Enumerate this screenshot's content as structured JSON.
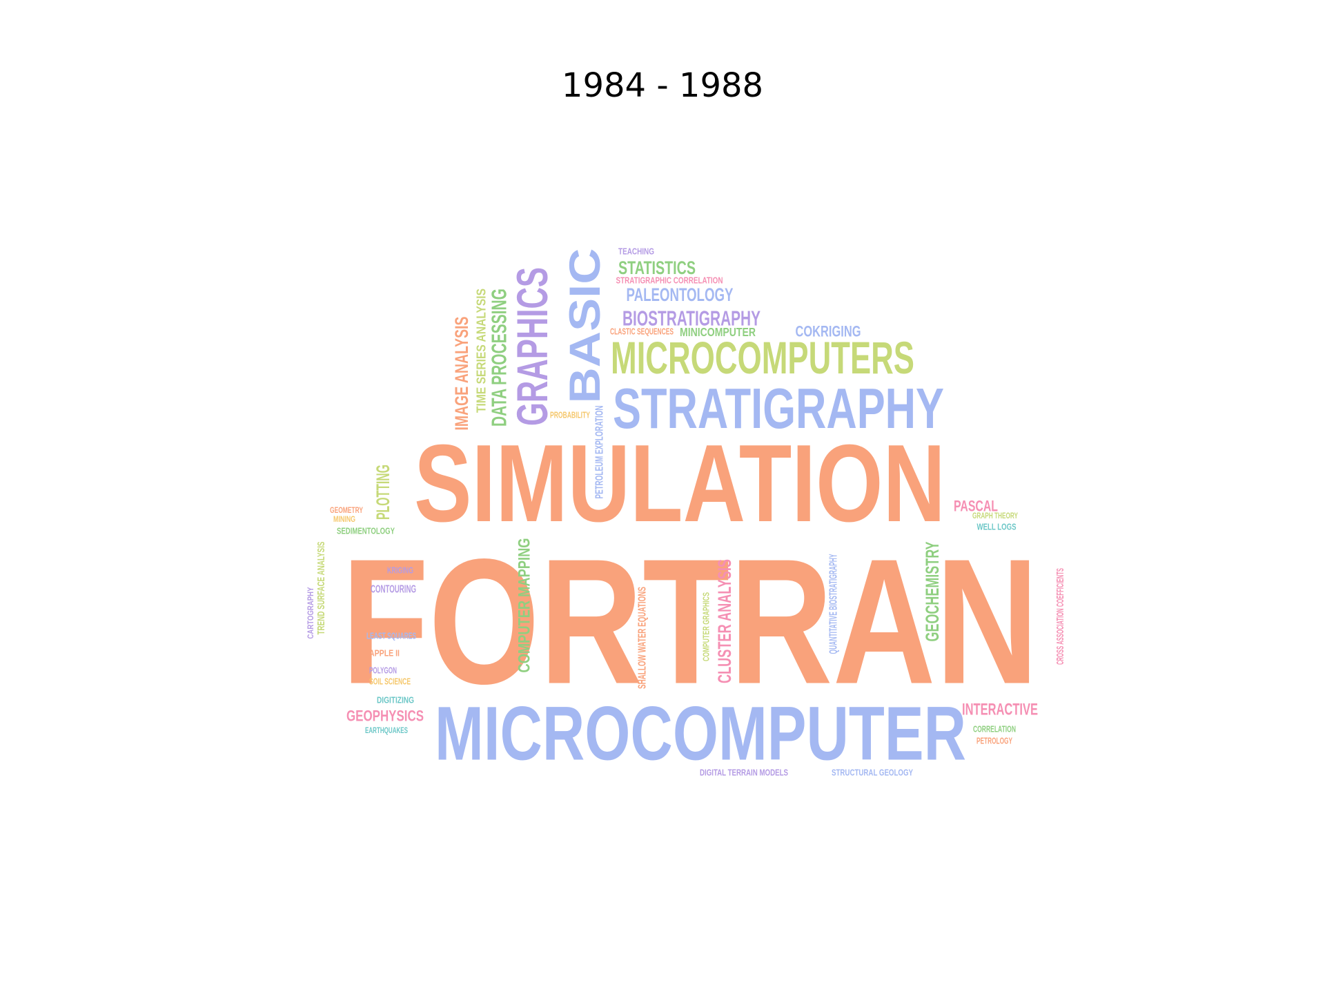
{
  "title": "1984 - 1988",
  "words": [
    {
      "text": "FORTRAN",
      "color": "#f9a27b"
    },
    {
      "text": "SIMULATION",
      "color": "#f9a27b"
    },
    {
      "text": "MICROCOMPUTER",
      "color": "#a4b8f2"
    },
    {
      "text": "STRATIGRAPHY",
      "color": "#a4b8f2"
    },
    {
      "text": "MICROCOMPUTERS",
      "color": "#c6d978"
    },
    {
      "text": "BASIC",
      "color": "#a4b8f2"
    },
    {
      "text": "GRAPHICS",
      "color": "#b49be4"
    },
    {
      "text": "DATA PROCESSING",
      "color": "#8fcf80"
    },
    {
      "text": "TIME SERIES ANALYSIS",
      "color": "#c6d978"
    },
    {
      "text": "IMAGE ANALYSIS",
      "color": "#f9a27b"
    },
    {
      "text": "TEACHING",
      "color": "#b49be4"
    },
    {
      "text": "STATISTICS",
      "color": "#8fcf80"
    },
    {
      "text": "STRATIGRAPHIC CORRELATION",
      "color": "#f58fb3"
    },
    {
      "text": "PALEONTOLOGY",
      "color": "#a4b8f2"
    },
    {
      "text": "BIOSTRATIGRAPHY",
      "color": "#b49be4"
    },
    {
      "text": "CLASTIC SEQUENCES",
      "color": "#f9a27b"
    },
    {
      "text": "MINICOMPUTER",
      "color": "#8fcf80"
    },
    {
      "text": "COKRIGING",
      "color": "#a4b8f2"
    },
    {
      "text": "PROBABILITY",
      "color": "#f5c76b"
    },
    {
      "text": "PETROLEUM EXPLORATION",
      "color": "#a4b8f2"
    },
    {
      "text": "PLOTTING",
      "color": "#c6d978"
    },
    {
      "text": "GEOMETRY",
      "color": "#f9a27b"
    },
    {
      "text": "MINING",
      "color": "#f5c76b"
    },
    {
      "text": "SEDIMENTOLOGY",
      "color": "#8fcf80"
    },
    {
      "text": "PASCAL",
      "color": "#f58fb3"
    },
    {
      "text": "GRAPH THEORY",
      "color": "#c6d978"
    },
    {
      "text": "WELL LOGS",
      "color": "#6cc7c7"
    },
    {
      "text": "CARTOGRAPHY",
      "color": "#b49be4"
    },
    {
      "text": "TREND SURFACE ANALYSIS",
      "color": "#c6d978"
    },
    {
      "text": "KRIGING",
      "color": "#b49be4"
    },
    {
      "text": "CONTOURING",
      "color": "#b49be4"
    },
    {
      "text": "LEAST SQUARES",
      "color": "#a4b8f2"
    },
    {
      "text": "APPLE II",
      "color": "#f9a27b"
    },
    {
      "text": "POLYGON",
      "color": "#b49be4"
    },
    {
      "text": "SOIL SCIENCE",
      "color": "#f5c76b"
    },
    {
      "text": "DIGITIZING",
      "color": "#6cc7c7"
    },
    {
      "text": "GEOPHYSICS",
      "color": "#f58fb3"
    },
    {
      "text": "EARTHQUAKES",
      "color": "#6cc7c7"
    },
    {
      "text": "COMPUTER MAPPING",
      "color": "#8fcf80"
    },
    {
      "text": "SHALLOW WATER EQUATIONS",
      "color": "#f9a27b"
    },
    {
      "text": "COMPUTER GRAPHICS",
      "color": "#c6d978"
    },
    {
      "text": "CLUSTER ANALYSIS",
      "color": "#f58fb3"
    },
    {
      "text": "QUANTITATIVE BIOSTRATIGRAPHY",
      "color": "#a4b8f2"
    },
    {
      "text": "GEOCHEMISTRY",
      "color": "#8fcf80"
    },
    {
      "text": "CROSS ASSOCIATION COEFFICIENTS",
      "color": "#f58fb3"
    },
    {
      "text": "INTERACTIVE",
      "color": "#f58fb3"
    },
    {
      "text": "CORRELATION",
      "color": "#8fcf80"
    },
    {
      "text": "PETROLOGY",
      "color": "#f9a27b"
    },
    {
      "text": "DIGITAL TERRAIN MODELS",
      "color": "#b49be4"
    },
    {
      "text": "STRUCTURAL GEOLOGY",
      "color": "#a4b8f2"
    }
  ]
}
